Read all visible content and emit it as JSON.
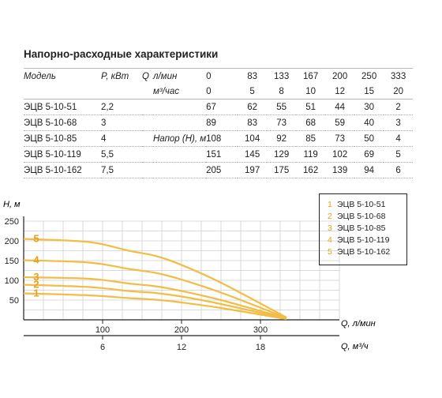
{
  "title": "Напорно-расходные характеристики",
  "table": {
    "model_header": "Модель",
    "power_header": "P, кВт",
    "q_symbol": "Q",
    "unit_lmin": "л/мин",
    "unit_m3h": "м³/час",
    "head_label": "Напор (H), м",
    "q_lmin": [
      "0",
      "83",
      "133",
      "167",
      "200",
      "250",
      "333"
    ],
    "q_m3h": [
      "0",
      "5",
      "8",
      "10",
      "12",
      "15",
      "20"
    ],
    "rows": [
      {
        "model": "ЭЦВ 5-10-51",
        "power": "2,2",
        "heads": [
          "67",
          "62",
          "55",
          "51",
          "44",
          "30",
          "2"
        ]
      },
      {
        "model": "ЭЦВ 5-10-68",
        "power": "3",
        "heads": [
          "89",
          "83",
          "73",
          "68",
          "59",
          "40",
          "3"
        ]
      },
      {
        "model": "ЭЦВ 5-10-85",
        "power": "4",
        "heads": [
          "108",
          "104",
          "92",
          "85",
          "73",
          "50",
          "4"
        ]
      },
      {
        "model": "ЭЦВ 5-10-119",
        "power": "5,5",
        "heads": [
          "151",
          "145",
          "129",
          "119",
          "102",
          "69",
          "5"
        ]
      },
      {
        "model": "ЭЦВ 5-10-162",
        "power": "7,5",
        "heads": [
          "205",
          "197",
          "175",
          "162",
          "139",
          "94",
          "6"
        ]
      }
    ]
  },
  "chart_data": {
    "type": "line",
    "ylabel": "H, м",
    "xlabel": "Q, л/мин",
    "x2label": "Q, м³/ч",
    "ylim": [
      0,
      250
    ],
    "xlim": [
      0,
      400
    ],
    "yticks": [
      50,
      100,
      150,
      200,
      250
    ],
    "xticks": [
      100,
      200,
      300
    ],
    "x2ticks": [
      6,
      12,
      18
    ],
    "grid": true,
    "legend_position": "top-right",
    "curve_color": "#f2bd44",
    "label_color": "#e4a21b",
    "x": [
      0,
      83,
      133,
      167,
      200,
      250,
      333
    ],
    "series": [
      {
        "name": "ЭЦВ 5-10-51",
        "label": "1",
        "values": [
          67,
          62,
          55,
          51,
          44,
          30,
          2
        ]
      },
      {
        "name": "ЭЦВ 5-10-68",
        "label": "2",
        "values": [
          89,
          83,
          73,
          68,
          59,
          40,
          3
        ]
      },
      {
        "name": "ЭЦВ 5-10-85",
        "label": "3",
        "values": [
          108,
          104,
          92,
          85,
          73,
          50,
          4
        ]
      },
      {
        "name": "ЭЦВ 5-10-119",
        "label": "4",
        "values": [
          151,
          145,
          129,
          119,
          102,
          69,
          5
        ]
      },
      {
        "name": "ЭЦВ 5-10-162",
        "label": "5",
        "values": [
          205,
          197,
          175,
          162,
          139,
          94,
          6
        ]
      }
    ]
  }
}
